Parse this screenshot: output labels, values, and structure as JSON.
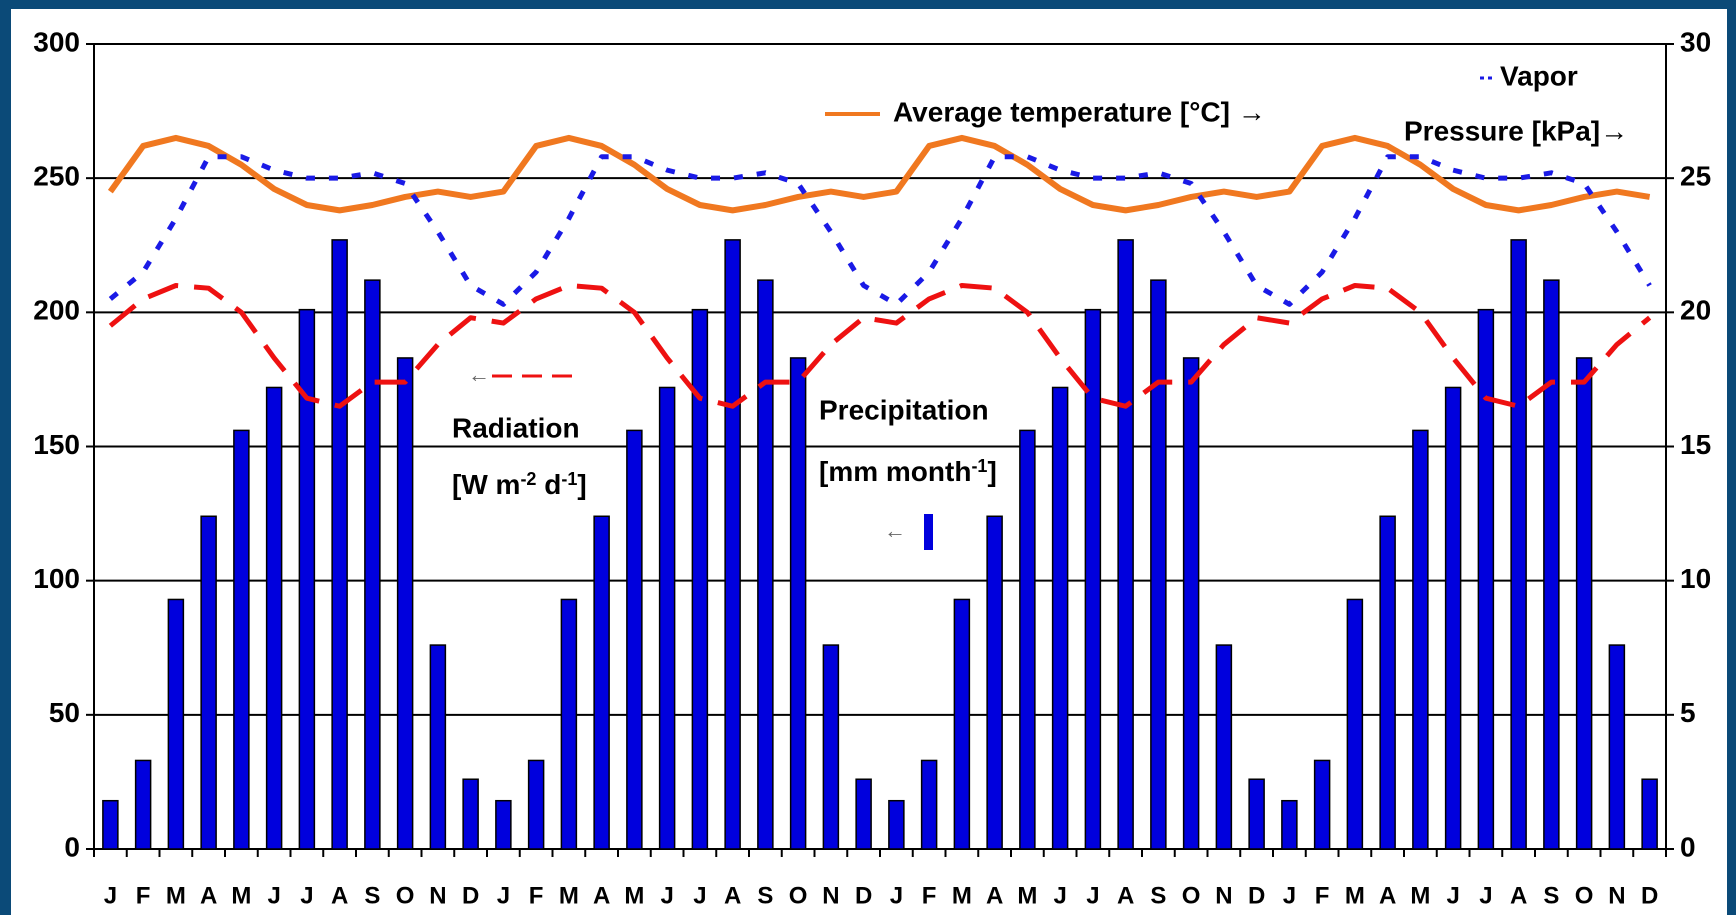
{
  "chart_data": {
    "type": "bar_line",
    "categories": [
      "J",
      "F",
      "M",
      "A",
      "M",
      "J",
      "J",
      "A",
      "S",
      "O",
      "N",
      "D",
      "J",
      "F",
      "M",
      "A",
      "M",
      "J",
      "J",
      "A",
      "S",
      "O",
      "N",
      "D",
      "J",
      "F",
      "M",
      "A",
      "M",
      "J",
      "J",
      "A",
      "S",
      "O",
      "N",
      "D",
      "J",
      "F",
      "M",
      "A",
      "M",
      "J",
      "J",
      "A",
      "S",
      "O",
      "N",
      "D"
    ],
    "series": [
      {
        "name": "Precipitation",
        "type": "bar",
        "color": "#0000dd",
        "axis": "y",
        "values": [
          18,
          33,
          93,
          124,
          156,
          172,
          201,
          227,
          212,
          183,
          76,
          26,
          18,
          33,
          93,
          124,
          156,
          172,
          201,
          227,
          212,
          183,
          76,
          26,
          18,
          33,
          93,
          124,
          156,
          172,
          201,
          227,
          212,
          183,
          76,
          26,
          18,
          33,
          93,
          124,
          156,
          172,
          201,
          227,
          212,
          183,
          76,
          26
        ]
      },
      {
        "name": "Radiation",
        "type": "line",
        "style": "dashed",
        "color": "#ee1111",
        "axis": "y",
        "values": [
          195,
          205,
          210,
          209,
          200,
          183,
          168,
          165,
          174,
          174,
          188,
          198,
          196,
          205,
          210,
          209,
          200,
          183,
          168,
          165,
          174,
          174,
          188,
          198,
          196,
          205,
          210,
          209,
          200,
          183,
          168,
          165,
          174,
          174,
          188,
          198,
          196,
          205,
          210,
          209,
          200,
          183,
          168,
          165,
          174,
          174,
          188,
          198
        ]
      },
      {
        "name": "Average temperature [°C] →",
        "type": "line",
        "style": "solid",
        "color": "#f07820",
        "axis": "y2",
        "values": [
          24.5,
          26.2,
          26.5,
          26.2,
          25.5,
          24.6,
          24.0,
          23.8,
          24.0,
          24.3,
          24.5,
          24.3,
          24.5,
          26.2,
          26.5,
          26.2,
          25.5,
          24.6,
          24.0,
          23.8,
          24.0,
          24.3,
          24.5,
          24.3,
          24.5,
          26.2,
          26.5,
          26.2,
          25.5,
          24.6,
          24.0,
          23.8,
          24.0,
          24.3,
          24.5,
          24.3,
          24.5,
          26.2,
          26.5,
          26.2,
          25.5,
          24.6,
          24.0,
          23.8,
          24.0,
          24.3,
          24.5,
          24.3
        ]
      },
      {
        "name": "Vapor",
        "type": "line",
        "style": "dotted",
        "color": "#1a1ae6",
        "axis": "y2",
        "values": [
          20.5,
          21.5,
          23.5,
          25.8,
          25.8,
          25.3,
          25.0,
          25.0,
          25.2,
          24.8,
          23.0,
          21.0,
          20.3,
          21.5,
          23.5,
          25.8,
          25.8,
          25.3,
          25.0,
          25.0,
          25.2,
          24.8,
          23.0,
          21.0,
          20.3,
          21.5,
          23.5,
          25.8,
          25.8,
          25.3,
          25.0,
          25.0,
          25.2,
          24.8,
          23.0,
          21.0,
          20.3,
          21.5,
          23.5,
          25.8,
          25.8,
          25.3,
          25.0,
          25.0,
          25.2,
          24.8,
          23.0,
          21.0
        ]
      }
    ],
    "annotations": [
      "Pressure [kPa]→",
      [
        "[W m",
        "-2",
        " d",
        "-1",
        "]"
      ],
      [
        "[mm month",
        "-1",
        "]"
      ],
      "←",
      "←"
    ],
    "ylim": [
      0,
      300
    ],
    "yticks": [
      0,
      50,
      100,
      150,
      200,
      250,
      300
    ],
    "y2lim": [
      0,
      30
    ],
    "y2ticks": [
      0,
      5,
      10,
      15,
      20,
      25,
      30
    ],
    "grid": true
  }
}
